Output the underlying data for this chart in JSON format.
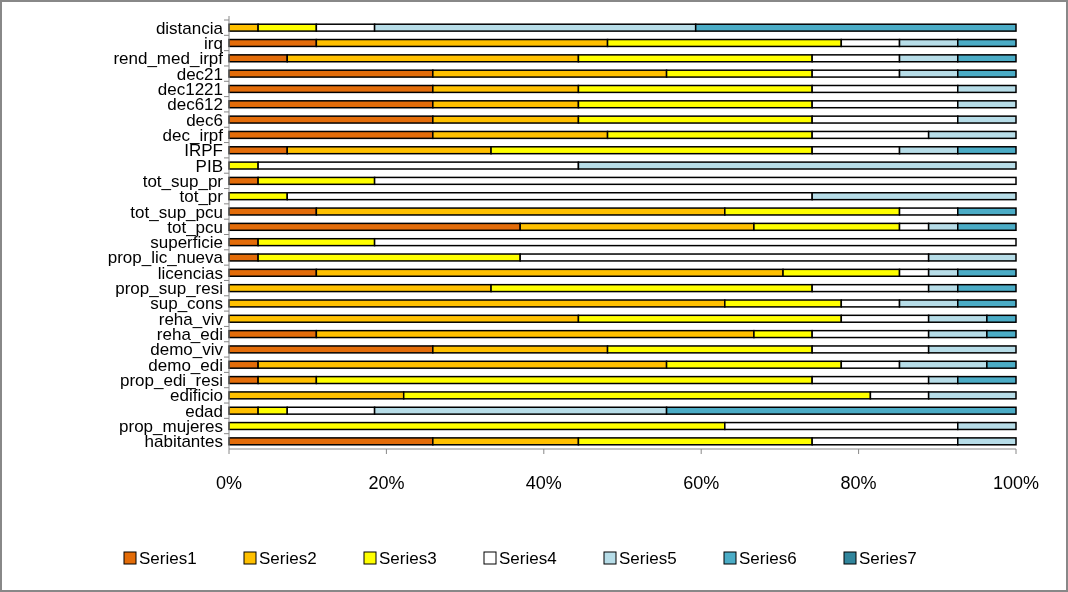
{
  "chart_data": {
    "type": "bar",
    "orientation": "horizontal",
    "stacked": true,
    "legend": "bottom",
    "grid": false,
    "categories": [
      "distancia",
      "irq",
      "rend_med_irpf",
      "dec21",
      "dec1221",
      "dec612",
      "dec6",
      "dec_irpf",
      "IRPF",
      "PIB",
      "tot_sup_pr",
      "tot_pr",
      "tot_sup_pcu",
      "tot_pcu",
      "superficie",
      "prop_lic_nueva",
      "licencias",
      "prop_sup_resi",
      "sup_cons",
      "reha_viv",
      "reha_edi",
      "demo_viv",
      "demo_edi",
      "prop_edi_resi",
      "edificio",
      "edad",
      "prop_mujeres",
      "habitantes"
    ],
    "xlim": [
      0,
      100
    ],
    "xticks": [
      {
        "value": 0,
        "label": "0%"
      },
      {
        "value": 20,
        "label": "20%"
      },
      {
        "value": 40,
        "label": "40%"
      },
      {
        "value": 60,
        "label": "60%"
      },
      {
        "value": 80,
        "label": "80%"
      },
      {
        "value": 100,
        "label": "100%"
      }
    ],
    "series": [
      {
        "name": "Series1",
        "color": "#e36c09",
        "values": [
          0,
          11.1,
          7.4,
          25.9,
          25.9,
          25.9,
          25.9,
          25.9,
          7.4,
          0,
          3.7,
          0,
          11.1,
          37.0,
          3.7,
          3.7,
          11.1,
          0,
          0,
          0,
          11.1,
          25.9,
          3.7,
          3.7,
          0,
          0,
          0,
          25.9
        ]
      },
      {
        "name": "Series2",
        "color": "#ffc000",
        "values": [
          3.7,
          37.0,
          37.0,
          29.7,
          18.5,
          18.5,
          18.5,
          22.2,
          25.9,
          0,
          0,
          0,
          51.9,
          29.7,
          0,
          0,
          59.3,
          33.3,
          63.0,
          44.4,
          55.6,
          22.2,
          51.9,
          7.4,
          22.2,
          3.7,
          0,
          18.5
        ]
      },
      {
        "name": "Series3",
        "color": "#ffff00",
        "values": [
          7.4,
          29.7,
          29.7,
          18.5,
          29.7,
          29.7,
          29.7,
          26.0,
          40.8,
          3.7,
          14.8,
          7.4,
          22.2,
          18.5,
          14.8,
          33.3,
          14.8,
          40.8,
          14.8,
          33.4,
          7.4,
          26.0,
          22.2,
          63.0,
          59.3,
          3.7,
          63.0,
          29.7
        ]
      },
      {
        "name": "Series4",
        "color": "#ffffff",
        "values": [
          7.4,
          7.4,
          11.1,
          11.1,
          18.5,
          18.5,
          18.5,
          14.8,
          11.1,
          40.7,
          81.5,
          66.7,
          7.4,
          3.7,
          81.5,
          51.9,
          3.7,
          14.8,
          7.4,
          11.1,
          14.8,
          14.8,
          7.4,
          14.8,
          7.4,
          11.1,
          29.6,
          18.5
        ]
      },
      {
        "name": "Series5",
        "color": "#b7dde8",
        "values": [
          40.8,
          7.4,
          7.4,
          7.4,
          7.4,
          7.4,
          7.4,
          11.1,
          7.4,
          55.6,
          0,
          25.9,
          0,
          3.7,
          0,
          11.1,
          3.7,
          3.7,
          7.4,
          7.4,
          7.4,
          11.1,
          11.1,
          3.7,
          11.1,
          37.1,
          7.4,
          7.4
        ]
      },
      {
        "name": "Series6",
        "color": "#4bacc6",
        "values": [
          40.7,
          7.4,
          7.4,
          7.4,
          0,
          0,
          0,
          0,
          7.4,
          0,
          0,
          0,
          7.4,
          7.4,
          0,
          0,
          7.4,
          7.4,
          7.4,
          3.7,
          3.7,
          0,
          3.7,
          7.4,
          0,
          44.4,
          0,
          0
        ]
      },
      {
        "name": "Series7",
        "color": "#31859c",
        "values": [
          0,
          0,
          0,
          0,
          0,
          0,
          0,
          0,
          0,
          0,
          0,
          0,
          0,
          0,
          0,
          0,
          0,
          0,
          0,
          0,
          0,
          0,
          0,
          0,
          0,
          0,
          0,
          0
        ]
      }
    ]
  }
}
